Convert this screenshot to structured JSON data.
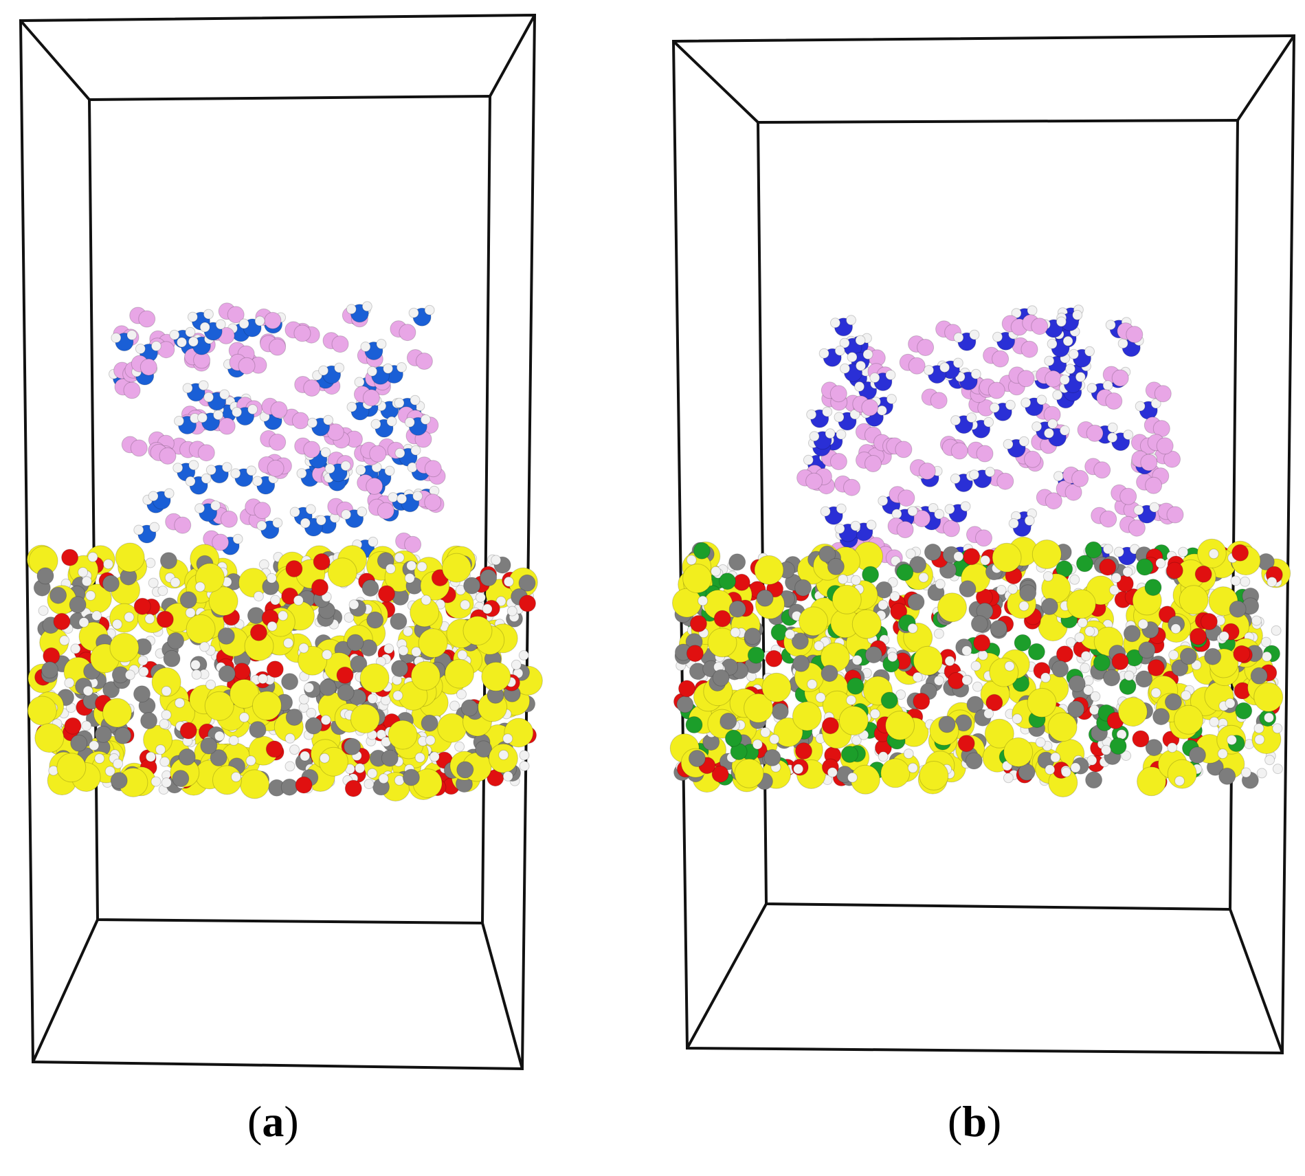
{
  "figure": {
    "panels": [
      {
        "label_open": "(",
        "label_letter": "a",
        "label_close": ")"
      },
      {
        "label_open": "(",
        "label_letter": "b",
        "label_close": ")"
      }
    ],
    "colors": {
      "background": "#ffffff",
      "box_edge": "#111111",
      "sulfur_yellow": "#f2ee1e",
      "oxygen_red": "#e01010",
      "carbon_gray": "#7d7d7d",
      "hydrogen_white": "#f2f2f2",
      "nitrogen_blue_a": "#1a5fd6",
      "nitrogen_blue_b": "#2a2fd6",
      "pink_molecule": "#e8a6e6",
      "green_molecule": "#1c9e2a"
    }
  }
}
